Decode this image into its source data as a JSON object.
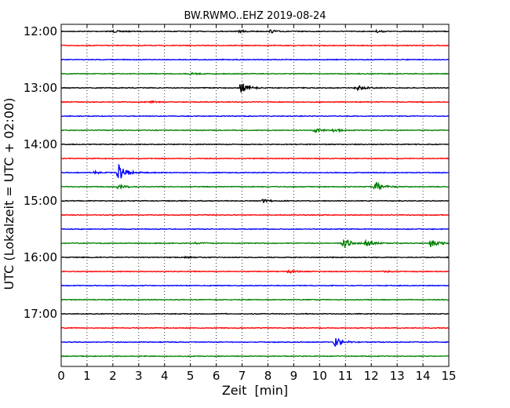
{
  "chart_data": {
    "type": "line",
    "title": "BW.RWMO..EHZ 2019-08-24",
    "xlabel": "Zeit  [min]",
    "ylabel": "UTC (Lokalzeit = UTC + 02:00)",
    "xlim": [
      0,
      15
    ],
    "x_ticks": [
      "0",
      "1",
      "2",
      "3",
      "4",
      "5",
      "6",
      "7",
      "8",
      "9",
      "10",
      "11",
      "12",
      "13",
      "14",
      "15"
    ],
    "y_tick_labels": [
      "12:00",
      "13:00",
      "14:00",
      "15:00",
      "16:00",
      "17:00"
    ],
    "trace_count": 24,
    "trace_interval_min": 15,
    "trace_colors": [
      "#000000",
      "#ff0000",
      "#0000ff",
      "#008000"
    ],
    "grid": "vertical dotted",
    "events": [
      {
        "trace": 0,
        "minute": 2.0,
        "amplitude": 0.15
      },
      {
        "trace": 0,
        "minute": 6.9,
        "amplitude": 0.18
      },
      {
        "trace": 0,
        "minute": 8.1,
        "amplitude": 0.22
      },
      {
        "trace": 0,
        "minute": 12.2,
        "amplitude": 0.15
      },
      {
        "trace": 3,
        "minute": 5.0,
        "amplitude": 0.15
      },
      {
        "trace": 4,
        "minute": 6.95,
        "amplitude": 0.9
      },
      {
        "trace": 4,
        "minute": 11.5,
        "amplitude": 0.2
      },
      {
        "trace": 4,
        "minute": 11.4,
        "amplitude": 0.25
      },
      {
        "trace": 5,
        "minute": 3.5,
        "amplitude": 0.12
      },
      {
        "trace": 7,
        "minute": 9.8,
        "amplitude": 0.35
      },
      {
        "trace": 7,
        "minute": 10.5,
        "amplitude": 0.3
      },
      {
        "trace": 10,
        "minute": 2.2,
        "amplitude": 1.6
      },
      {
        "trace": 10,
        "minute": 1.3,
        "amplitude": 0.2
      },
      {
        "trace": 11,
        "minute": 2.2,
        "amplitude": 0.35
      },
      {
        "trace": 11,
        "minute": 12.15,
        "amplitude": 0.8
      },
      {
        "trace": 12,
        "minute": 7.8,
        "amplitude": 0.2
      },
      {
        "trace": 15,
        "minute": 10.9,
        "amplitude": 0.95
      },
      {
        "trace": 15,
        "minute": 11.8,
        "amplitude": 0.45
      },
      {
        "trace": 15,
        "minute": 14.3,
        "amplitude": 0.6
      },
      {
        "trace": 15,
        "minute": 5.2,
        "amplitude": 0.15
      },
      {
        "trace": 16,
        "minute": 4.8,
        "amplitude": 0.12
      },
      {
        "trace": 17,
        "minute": 8.8,
        "amplitude": 0.2
      },
      {
        "trace": 17,
        "minute": 12.5,
        "amplitude": 0.15
      },
      {
        "trace": 22,
        "minute": 10.6,
        "amplitude": 0.8
      }
    ]
  }
}
